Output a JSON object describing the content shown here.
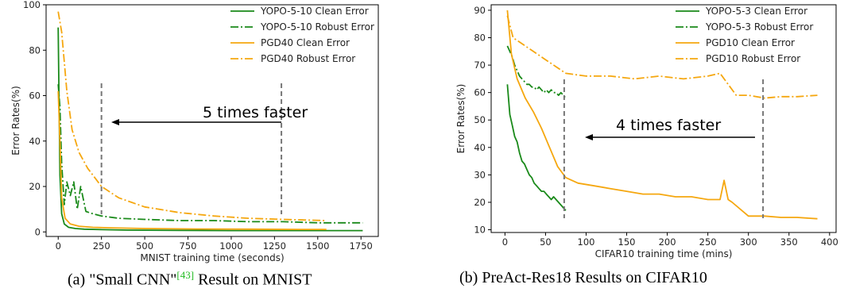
{
  "chart_data": [
    {
      "type": "line",
      "xlabel": "MNIST training time (seconds)",
      "ylabel": "Error Rates(%)",
      "xlim": [
        -70,
        1850
      ],
      "ylim": [
        -2,
        100
      ],
      "xticks": [
        0,
        250,
        500,
        750,
        1000,
        1250,
        1500,
        1750
      ],
      "yticks": [
        0,
        20,
        40,
        60,
        80,
        100
      ],
      "legend_position": "top-right",
      "annotation": {
        "text": "5 times faster",
        "vlines": [
          250,
          1290
        ]
      },
      "series": [
        {
          "name": "YOPO-5-10 Clean Error",
          "color": "#1a8a1a",
          "dash": "solid",
          "x": [
            0,
            10,
            20,
            35,
            60,
            100,
            150,
            250,
            400,
            700,
            1000,
            1300,
            1550,
            1760
          ],
          "y": [
            90,
            25,
            8,
            3.5,
            2,
            1.5,
            1.2,
            1.0,
            0.8,
            0.7,
            0.6,
            0.6,
            0.6,
            0.6
          ]
        },
        {
          "name": "YOPO-5-10 Robust Error",
          "color": "#1a8a1a",
          "dash": "dashdot",
          "x": [
            0,
            10,
            20,
            35,
            50,
            70,
            90,
            110,
            130,
            160,
            200,
            250,
            350,
            500,
            700,
            900,
            1100,
            1300,
            1500,
            1760
          ],
          "y": [
            65,
            55,
            30,
            12,
            22,
            16,
            22,
            10,
            20,
            9,
            8,
            7,
            6,
            5.5,
            5,
            5,
            4.5,
            4.5,
            4,
            4
          ]
        },
        {
          "name": "PGD40 Clean Error",
          "color": "#f5a70f",
          "dash": "solid",
          "x": [
            0,
            10,
            20,
            40,
            70,
            120,
            200,
            300,
            500,
            800,
            1100,
            1400,
            1550
          ],
          "y": [
            62,
            40,
            15,
            6,
            3.5,
            2.5,
            2,
            1.8,
            1.5,
            1.3,
            1.2,
            1.1,
            1.1
          ]
        },
        {
          "name": "PGD40 Robust Error",
          "color": "#f5a70f",
          "dash": "dashdot",
          "x": [
            0,
            20,
            50,
            80,
            120,
            170,
            250,
            350,
            500,
            700,
            900,
            1100,
            1300,
            1550
          ],
          "y": [
            97,
            88,
            62,
            45,
            35,
            28,
            20,
            15,
            11,
            8.5,
            7,
            6,
            5.5,
            5
          ]
        }
      ]
    },
    {
      "type": "line",
      "xlabel": "CIFAR10 training time (mins)",
      "ylabel": "Error Rates(%)",
      "xlim": [
        -17,
        408
      ],
      "ylim": [
        9,
        92
      ],
      "xticks": [
        0,
        50,
        100,
        150,
        200,
        250,
        300,
        350,
        400
      ],
      "yticks": [
        10,
        20,
        30,
        40,
        50,
        60,
        70,
        80,
        90
      ],
      "legend_position": "top-right",
      "annotation": {
        "text": "4 times faster",
        "vlines": [
          73,
          318
        ]
      },
      "series": [
        {
          "name": "YOPO-5-3 Clean Error",
          "color": "#1a8a1a",
          "dash": "solid",
          "x": [
            3,
            6,
            9,
            12,
            15,
            18,
            21,
            24,
            27,
            30,
            33,
            36,
            39,
            42,
            45,
            48,
            51,
            54,
            57,
            60,
            63,
            66,
            69,
            72,
            75
          ],
          "y": [
            63,
            52,
            48,
            44,
            42,
            38,
            35,
            34,
            32,
            30,
            29,
            27,
            26,
            25,
            24,
            24,
            23,
            22,
            21,
            22,
            21,
            20,
            19,
            18,
            17
          ]
        },
        {
          "name": "YOPO-5-3 Robust Error",
          "color": "#1a8a1a",
          "dash": "dashdot",
          "x": [
            3,
            6,
            9,
            12,
            15,
            18,
            21,
            24,
            27,
            30,
            33,
            36,
            39,
            42,
            45,
            48,
            51,
            54,
            57,
            60,
            63,
            66,
            69,
            72,
            75
          ],
          "y": [
            77,
            75,
            73,
            70,
            68,
            66,
            65,
            64,
            63,
            63,
            62,
            62,
            61,
            62,
            61,
            60,
            61,
            60,
            61,
            60,
            60,
            59,
            60,
            59,
            58
          ]
        },
        {
          "name": "PGD10 Clean Error",
          "color": "#f5a70f",
          "dash": "solid",
          "x": [
            3,
            8,
            15,
            25,
            35,
            45,
            55,
            65,
            75,
            90,
            110,
            130,
            150,
            170,
            190,
            210,
            230,
            250,
            265,
            270,
            275,
            280,
            300,
            320,
            340,
            360,
            385
          ],
          "y": [
            90,
            74,
            65,
            58,
            53,
            47,
            40,
            33,
            29,
            27,
            26,
            25,
            24,
            23,
            23,
            22,
            22,
            21,
            21,
            28,
            21,
            20,
            15,
            15,
            14.5,
            14.5,
            14
          ]
        },
        {
          "name": "PGD10 Robust Error",
          "color": "#f5a70f",
          "dash": "dashdot",
          "x": [
            3,
            10,
            20,
            35,
            50,
            65,
            75,
            100,
            130,
            160,
            190,
            220,
            250,
            265,
            275,
            285,
            300,
            320,
            340,
            360,
            385
          ],
          "y": [
            88,
            80,
            78,
            75,
            72,
            69,
            67,
            66,
            66,
            65,
            66,
            65,
            66,
            67,
            63,
            59,
            59,
            58,
            58.5,
            58.5,
            59
          ]
        }
      ]
    }
  ],
  "captions": {
    "a_prefix": "(a) \"Small CNN\"",
    "a_ref": "[43]",
    "a_suffix": " Result on MNIST",
    "b": "(b) PreAct-Res18 Results on CIFAR10"
  }
}
